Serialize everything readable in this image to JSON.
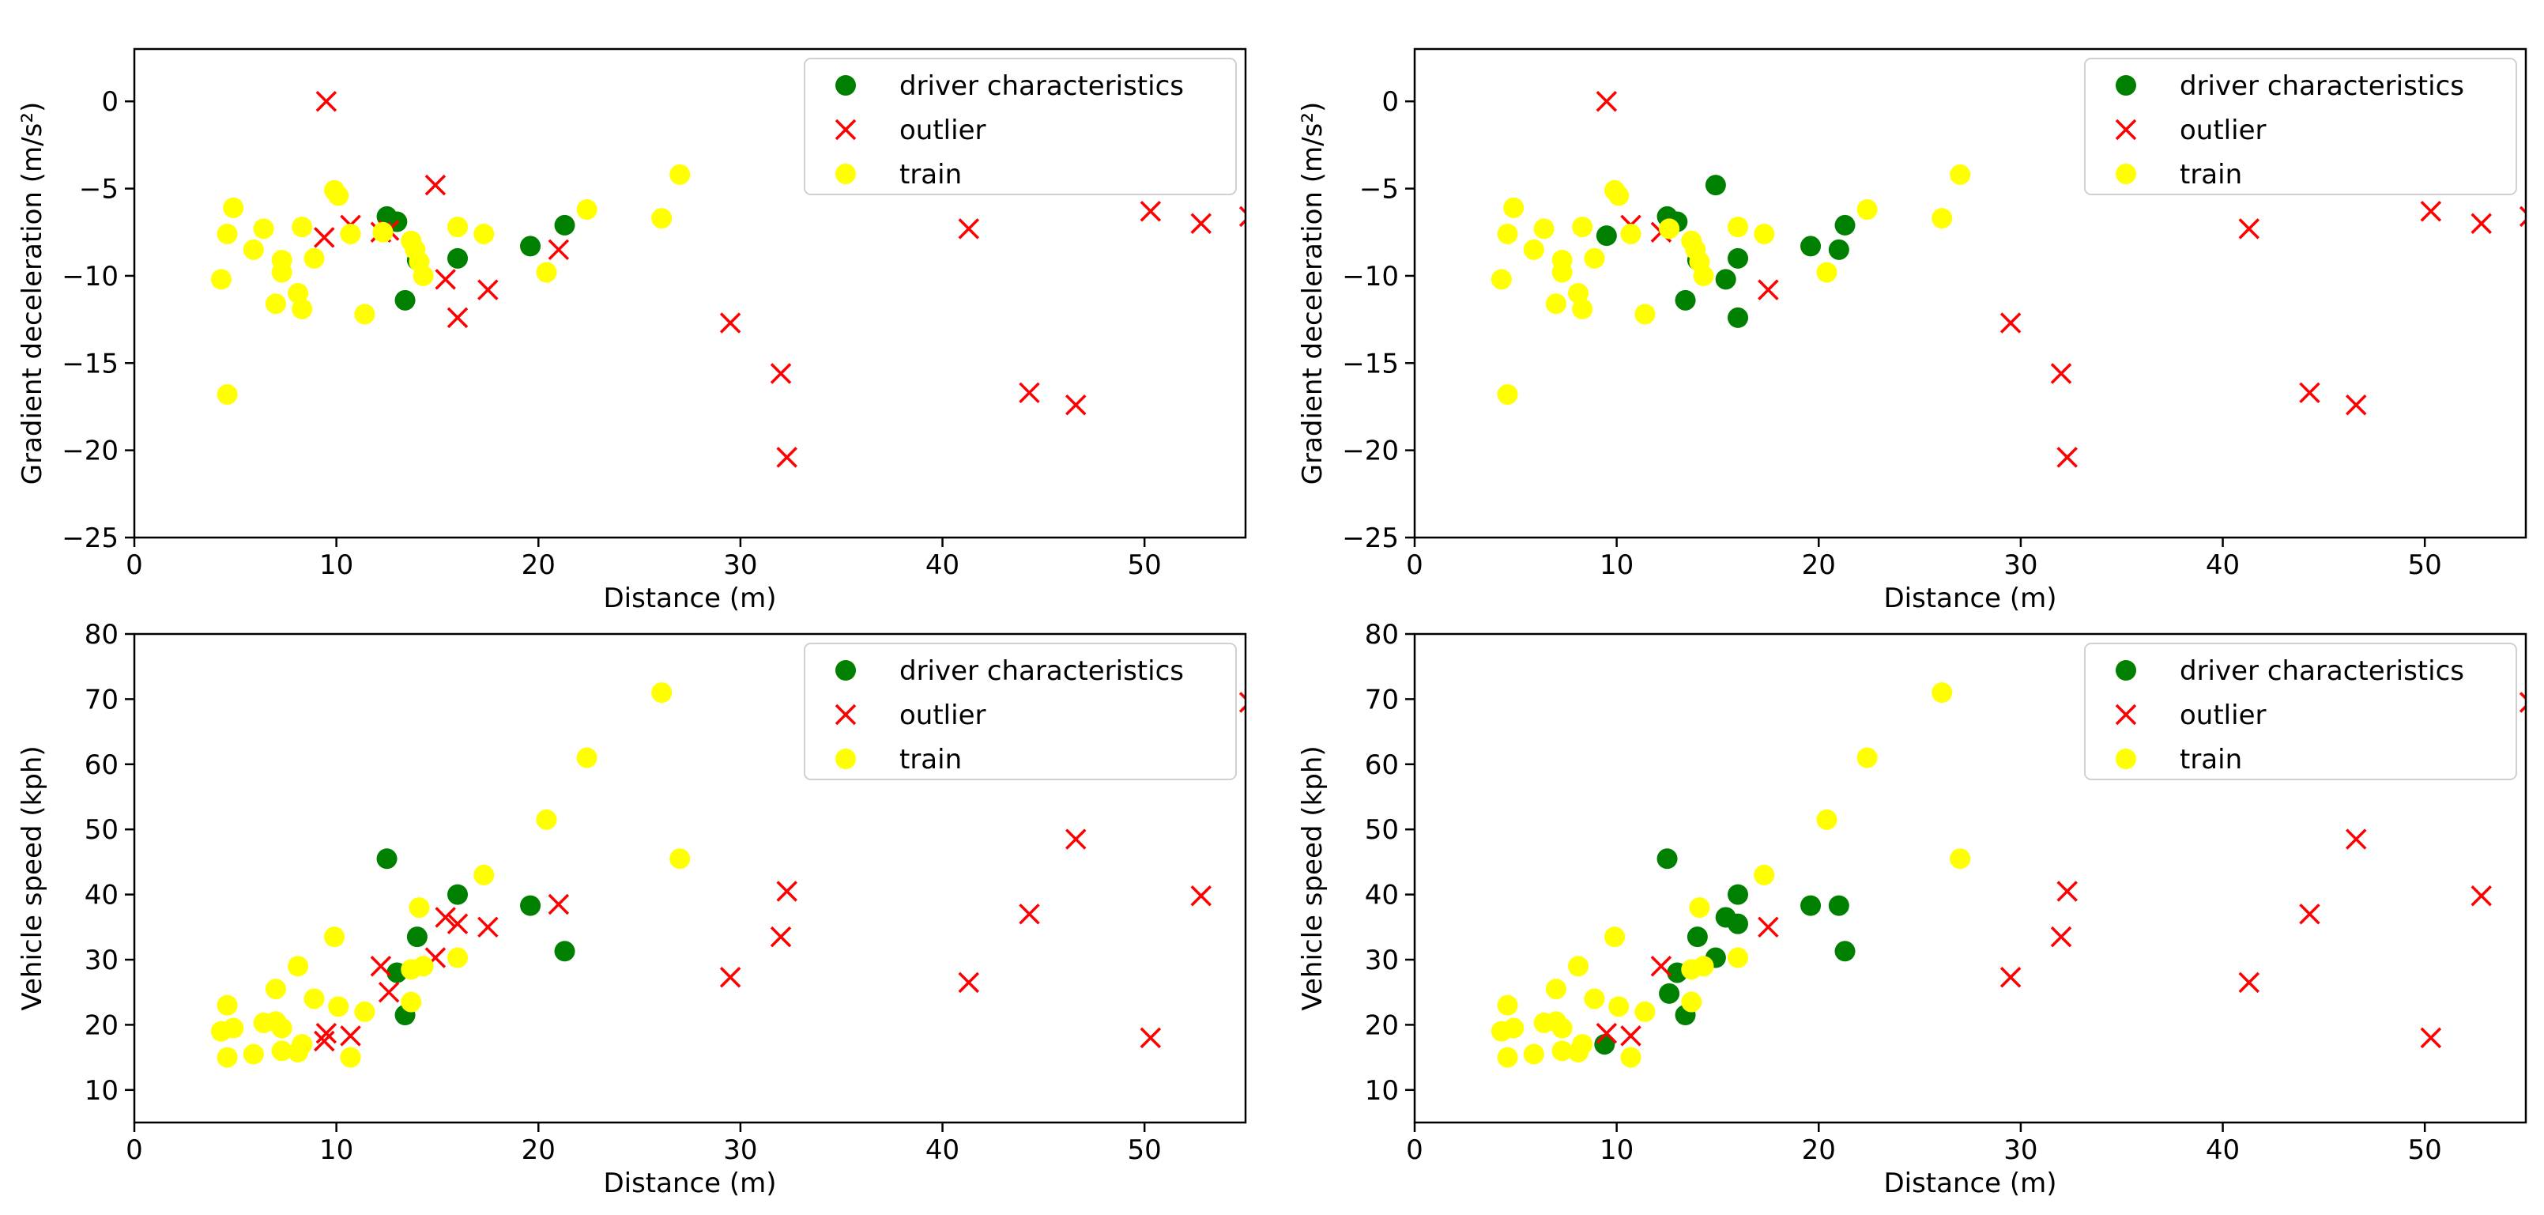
{
  "figure": {
    "legend_labels": [
      "driver characteristics",
      "outlier",
      "train"
    ],
    "colors": {
      "driver": "#008000",
      "outlier": "#ff0000",
      "train": "#ffff00"
    }
  },
  "chart_data": [
    {
      "type": "scatter",
      "panel": "top-left",
      "xlabel": "Distance (m)",
      "ylabel": "Gradient deceleration  (m/s²)",
      "xlim": [
        0,
        55
      ],
      "ylim": [
        -25,
        3
      ],
      "xticks": [
        0,
        10,
        20,
        30,
        40,
        50
      ],
      "yticks": [
        0,
        -5,
        -10,
        -15,
        -20,
        -25
      ],
      "legend_position": "top-right",
      "series": [
        {
          "name": "driver characteristics",
          "marker": "circle",
          "color": "#008000",
          "points": [
            [
              12.5,
              -6.6
            ],
            [
              13.0,
              -6.9
            ],
            [
              13.4,
              -11.4
            ],
            [
              14.0,
              -9.1
            ],
            [
              16.0,
              -9.0
            ],
            [
              19.6,
              -8.3
            ],
            [
              21.3,
              -7.1
            ]
          ]
        },
        {
          "name": "outlier",
          "marker": "x",
          "color": "#ff0000",
          "points": [
            [
              9.5,
              0.0
            ],
            [
              9.4,
              -7.8
            ],
            [
              10.7,
              -7.1
            ],
            [
              12.2,
              -7.5
            ],
            [
              12.6,
              -7.4
            ],
            [
              14.9,
              -4.8
            ],
            [
              15.4,
              -10.2
            ],
            [
              16.0,
              -12.4
            ],
            [
              17.5,
              -10.8
            ],
            [
              21.0,
              -8.5
            ],
            [
              29.5,
              -12.7
            ],
            [
              32.0,
              -15.6
            ],
            [
              32.3,
              -20.4
            ],
            [
              41.3,
              -7.3
            ],
            [
              44.3,
              -16.7
            ],
            [
              46.6,
              -17.4
            ],
            [
              50.3,
              -6.3
            ],
            [
              52.8,
              -7.0
            ],
            [
              55.2,
              -6.6
            ]
          ]
        },
        {
          "name": "train",
          "marker": "circle",
          "color": "#ffff00",
          "points": [
            [
              4.3,
              -10.2
            ],
            [
              4.6,
              -7.6
            ],
            [
              4.9,
              -6.1
            ],
            [
              4.6,
              -16.8
            ],
            [
              5.9,
              -8.5
            ],
            [
              6.4,
              -7.3
            ],
            [
              7.0,
              -11.6
            ],
            [
              7.3,
              -9.8
            ],
            [
              7.3,
              -9.1
            ],
            [
              8.1,
              -11.0
            ],
            [
              8.3,
              -11.9
            ],
            [
              8.3,
              -7.2
            ],
            [
              8.9,
              -9.0
            ],
            [
              9.9,
              -5.1
            ],
            [
              10.1,
              -5.4
            ],
            [
              10.7,
              -7.6
            ],
            [
              11.4,
              -12.2
            ],
            [
              12.3,
              -7.5
            ],
            [
              13.7,
              -8.0
            ],
            [
              13.9,
              -8.5
            ],
            [
              14.1,
              -9.2
            ],
            [
              14.3,
              -10.0
            ],
            [
              16.0,
              -7.2
            ],
            [
              17.3,
              -7.6
            ],
            [
              20.4,
              -9.8
            ],
            [
              22.4,
              -6.2
            ],
            [
              26.1,
              -6.7
            ],
            [
              27.0,
              -4.2
            ]
          ]
        }
      ]
    },
    {
      "type": "scatter",
      "panel": "top-right",
      "xlabel": "Distance (m)",
      "ylabel": "Gradient deceleration  (m/s²)",
      "xlim": [
        0,
        55
      ],
      "ylim": [
        -25,
        3
      ],
      "xticks": [
        0,
        10,
        20,
        30,
        40,
        50
      ],
      "yticks": [
        0,
        -5,
        -10,
        -15,
        -20,
        -25
      ],
      "legend_position": "top-right",
      "series": [
        {
          "name": "driver characteristics",
          "marker": "circle",
          "color": "#008000",
          "points": [
            [
              9.5,
              -7.7
            ],
            [
              12.5,
              -6.6
            ],
            [
              13.0,
              -6.9
            ],
            [
              13.4,
              -11.4
            ],
            [
              14.0,
              -9.1
            ],
            [
              14.9,
              -4.8
            ],
            [
              15.4,
              -10.2
            ],
            [
              16.0,
              -9.0
            ],
            [
              16.0,
              -12.4
            ],
            [
              19.6,
              -8.3
            ],
            [
              21.0,
              -8.5
            ],
            [
              21.3,
              -7.1
            ]
          ]
        },
        {
          "name": "outlier",
          "marker": "x",
          "color": "#ff0000",
          "points": [
            [
              9.5,
              0.0
            ],
            [
              10.7,
              -7.1
            ],
            [
              12.2,
              -7.5
            ],
            [
              17.5,
              -10.8
            ],
            [
              29.5,
              -12.7
            ],
            [
              32.0,
              -15.6
            ],
            [
              32.3,
              -20.4
            ],
            [
              41.3,
              -7.3
            ],
            [
              44.3,
              -16.7
            ],
            [
              46.6,
              -17.4
            ],
            [
              50.3,
              -6.3
            ],
            [
              52.8,
              -7.0
            ],
            [
              55.2,
              -6.6
            ]
          ]
        },
        {
          "name": "train",
          "marker": "circle",
          "color": "#ffff00",
          "points": [
            [
              4.3,
              -10.2
            ],
            [
              4.6,
              -7.6
            ],
            [
              4.9,
              -6.1
            ],
            [
              4.6,
              -16.8
            ],
            [
              5.9,
              -8.5
            ],
            [
              6.4,
              -7.3
            ],
            [
              7.0,
              -11.6
            ],
            [
              7.3,
              -9.8
            ],
            [
              7.3,
              -9.1
            ],
            [
              8.1,
              -11.0
            ],
            [
              8.3,
              -11.9
            ],
            [
              8.3,
              -7.2
            ],
            [
              8.9,
              -9.0
            ],
            [
              9.9,
              -5.1
            ],
            [
              10.1,
              -5.4
            ],
            [
              10.7,
              -7.6
            ],
            [
              11.4,
              -12.2
            ],
            [
              12.6,
              -7.3
            ],
            [
              13.7,
              -8.0
            ],
            [
              13.9,
              -8.5
            ],
            [
              14.1,
              -9.2
            ],
            [
              14.3,
              -10.0
            ],
            [
              16.0,
              -7.2
            ],
            [
              17.3,
              -7.6
            ],
            [
              20.4,
              -9.8
            ],
            [
              22.4,
              -6.2
            ],
            [
              26.1,
              -6.7
            ],
            [
              27.0,
              -4.2
            ]
          ]
        }
      ]
    },
    {
      "type": "scatter",
      "panel": "bottom-left",
      "xlabel": "Distance (m)",
      "ylabel": "Vehicle speed (kph)",
      "xlim": [
        0,
        55
      ],
      "ylim": [
        5,
        80
      ],
      "xticks": [
        0,
        10,
        20,
        30,
        40,
        50
      ],
      "yticks": [
        10,
        20,
        30,
        40,
        50,
        60,
        70,
        80
      ],
      "legend_position": "top-right",
      "series": [
        {
          "name": "driver characteristics",
          "marker": "circle",
          "color": "#008000",
          "points": [
            [
              12.5,
              45.5
            ],
            [
              13.0,
              28.0
            ],
            [
              13.4,
              21.5
            ],
            [
              14.0,
              33.5
            ],
            [
              16.0,
              40.0
            ],
            [
              19.6,
              38.3
            ],
            [
              21.3,
              31.3
            ]
          ]
        },
        {
          "name": "outlier",
          "marker": "x",
          "color": "#ff0000",
          "points": [
            [
              9.4,
              17.5
            ],
            [
              9.5,
              18.7
            ],
            [
              10.7,
              18.3
            ],
            [
              12.2,
              29.0
            ],
            [
              12.6,
              25.0
            ],
            [
              14.9,
              30.3
            ],
            [
              15.4,
              36.5
            ],
            [
              16.0,
              35.5
            ],
            [
              17.5,
              35.0
            ],
            [
              21.0,
              38.5
            ],
            [
              29.5,
              27.3
            ],
            [
              32.0,
              33.5
            ],
            [
              32.3,
              40.5
            ],
            [
              41.3,
              26.5
            ],
            [
              44.3,
              37.0
            ],
            [
              46.6,
              48.5
            ],
            [
              50.3,
              18.0
            ],
            [
              52.8,
              39.8
            ],
            [
              55.2,
              69.5
            ]
          ]
        },
        {
          "name": "train",
          "marker": "circle",
          "color": "#ffff00",
          "points": [
            [
              4.3,
              19.0
            ],
            [
              4.6,
              15.0
            ],
            [
              4.6,
              23.0
            ],
            [
              4.9,
              19.5
            ],
            [
              5.9,
              15.5
            ],
            [
              6.4,
              20.3
            ],
            [
              7.0,
              25.5
            ],
            [
              7.0,
              20.5
            ],
            [
              7.3,
              16.0
            ],
            [
              7.3,
              19.5
            ],
            [
              8.1,
              29.0
            ],
            [
              8.1,
              15.8
            ],
            [
              8.3,
              17.0
            ],
            [
              8.9,
              24.0
            ],
            [
              9.9,
              33.5
            ],
            [
              10.1,
              22.8
            ],
            [
              10.7,
              15.0
            ],
            [
              11.4,
              22.0
            ],
            [
              13.7,
              23.5
            ],
            [
              13.7,
              28.5
            ],
            [
              14.1,
              38.0
            ],
            [
              14.3,
              29.0
            ],
            [
              16.0,
              30.3
            ],
            [
              17.3,
              43.0
            ],
            [
              20.4,
              51.5
            ],
            [
              22.4,
              61.0
            ],
            [
              26.1,
              71.0
            ],
            [
              27.0,
              45.5
            ]
          ]
        }
      ]
    },
    {
      "type": "scatter",
      "panel": "bottom-right",
      "xlabel": "Distance (m)",
      "ylabel": "Vehicle speed (kph)",
      "xlim": [
        0,
        55
      ],
      "ylim": [
        5,
        80
      ],
      "xticks": [
        0,
        10,
        20,
        30,
        40,
        50
      ],
      "yticks": [
        10,
        20,
        30,
        40,
        50,
        60,
        70,
        80
      ],
      "legend_position": "top-right",
      "series": [
        {
          "name": "driver characteristics",
          "marker": "circle",
          "color": "#008000",
          "points": [
            [
              9.4,
              17.0
            ],
            [
              12.5,
              45.5
            ],
            [
              12.6,
              24.8
            ],
            [
              13.0,
              28.0
            ],
            [
              13.4,
              21.5
            ],
            [
              14.0,
              33.5
            ],
            [
              14.9,
              30.3
            ],
            [
              15.4,
              36.5
            ],
            [
              16.0,
              40.0
            ],
            [
              16.0,
              35.5
            ],
            [
              19.6,
              38.3
            ],
            [
              21.0,
              38.3
            ],
            [
              21.3,
              31.3
            ]
          ]
        },
        {
          "name": "outlier",
          "marker": "x",
          "color": "#ff0000",
          "points": [
            [
              9.5,
              18.7
            ],
            [
              10.7,
              18.3
            ],
            [
              12.2,
              29.0
            ],
            [
              17.5,
              35.0
            ],
            [
              29.5,
              27.3
            ],
            [
              32.0,
              33.5
            ],
            [
              32.3,
              40.5
            ],
            [
              41.3,
              26.5
            ],
            [
              44.3,
              37.0
            ],
            [
              46.6,
              48.5
            ],
            [
              50.3,
              18.0
            ],
            [
              52.8,
              39.8
            ],
            [
              55.2,
              69.5
            ]
          ]
        },
        {
          "name": "train",
          "marker": "circle",
          "color": "#ffff00",
          "points": [
            [
              4.3,
              19.0
            ],
            [
              4.6,
              15.0
            ],
            [
              4.6,
              23.0
            ],
            [
              4.9,
              19.5
            ],
            [
              5.9,
              15.5
            ],
            [
              6.4,
              20.3
            ],
            [
              7.0,
              25.5
            ],
            [
              7.0,
              20.5
            ],
            [
              7.3,
              16.0
            ],
            [
              7.3,
              19.5
            ],
            [
              8.1,
              29.0
            ],
            [
              8.1,
              15.8
            ],
            [
              8.3,
              17.0
            ],
            [
              8.9,
              24.0
            ],
            [
              9.9,
              33.5
            ],
            [
              10.1,
              22.8
            ],
            [
              10.7,
              15.0
            ],
            [
              11.4,
              22.0
            ],
            [
              13.7,
              23.5
            ],
            [
              13.7,
              28.5
            ],
            [
              14.1,
              38.0
            ],
            [
              14.3,
              29.0
            ],
            [
              16.0,
              30.3
            ],
            [
              17.3,
              43.0
            ],
            [
              20.4,
              51.5
            ],
            [
              22.4,
              61.0
            ],
            [
              26.1,
              71.0
            ],
            [
              27.0,
              45.5
            ]
          ]
        }
      ]
    }
  ]
}
